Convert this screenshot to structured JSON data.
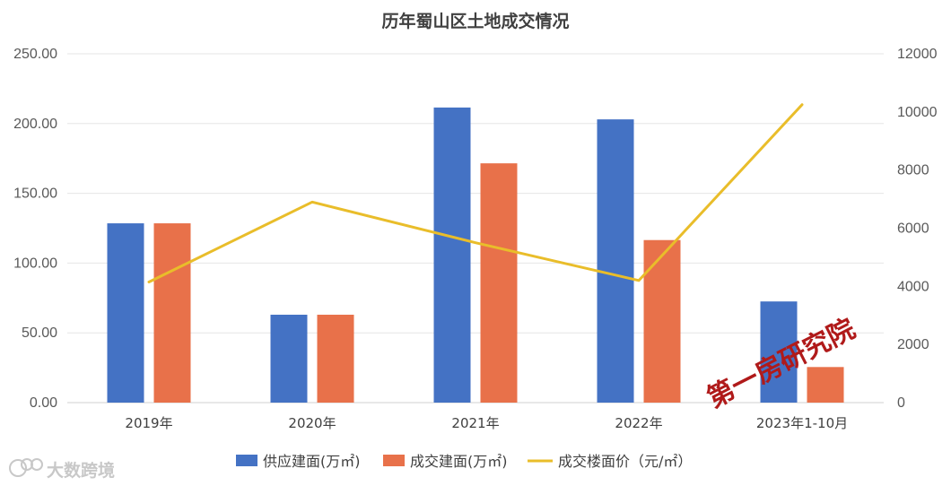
{
  "chart_data": {
    "type": "bar",
    "title": "历年蜀山区土地成交情况",
    "categories": [
      "2019年",
      "2020年",
      "2021年",
      "2022年",
      "2023年1-10月"
    ],
    "series": [
      {
        "name": "供应建面(万㎡)",
        "type": "bar",
        "axis": "left",
        "color": "#4472C4",
        "values": [
          128.5,
          63.0,
          211.5,
          203.0,
          72.5
        ]
      },
      {
        "name": "成交建面(万㎡)",
        "type": "bar",
        "axis": "left",
        "color": "#E8714A",
        "values": [
          128.5,
          63.0,
          171.5,
          116.5,
          25.5
        ]
      },
      {
        "name": "成交楼面价（元/㎡）",
        "type": "line",
        "axis": "right",
        "color": "#E9BD2A",
        "values": [
          4150,
          6900,
          5500,
          4200,
          10250
        ]
      }
    ],
    "left_axis": {
      "ylim": [
        0,
        250
      ],
      "ticks": [
        "0.00",
        "50.00",
        "100.00",
        "150.00",
        "200.00",
        "250.00"
      ]
    },
    "right_axis": {
      "ylim": [
        0,
        12000
      ],
      "ticks": [
        "0",
        "2000",
        "4000",
        "6000",
        "8000",
        "10000",
        "12000"
      ]
    },
    "grid": true,
    "legend_position": "bottom"
  },
  "watermarks": {
    "stamp": "第一房研究院",
    "source": "大数跨境"
  }
}
